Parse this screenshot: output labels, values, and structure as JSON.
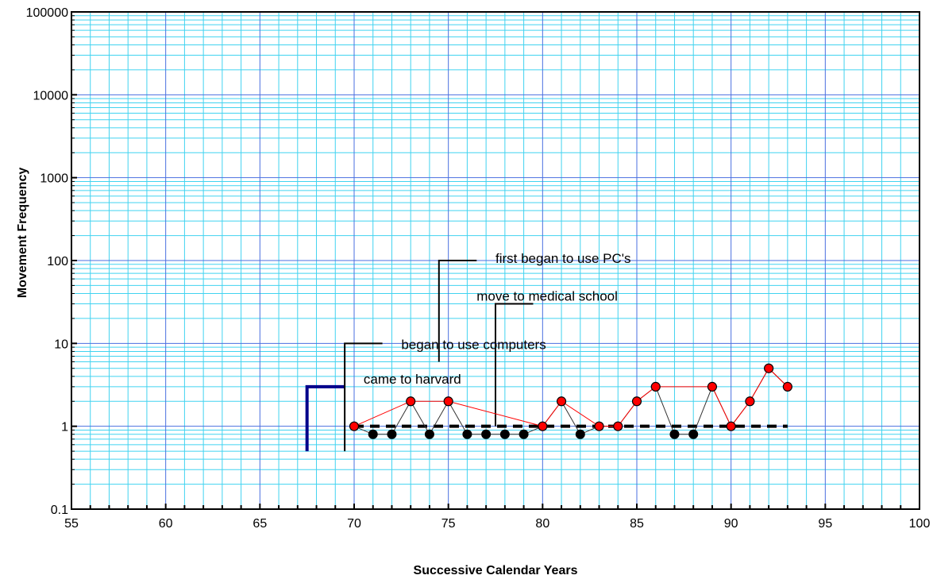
{
  "chart_data": {
    "type": "line",
    "title": "",
    "xlabel": "Successive Calendar Years",
    "ylabel": "Movement  Frequency",
    "xlim": [
      55,
      100
    ],
    "ylim": [
      0.1,
      100000
    ],
    "y_scale": "log",
    "grid": true,
    "colors": {
      "major_grid": "#4a6fe0",
      "minor_grid": "#41d3f0",
      "frequency_line": "#ff0000",
      "frequency_marker": "#ff0000",
      "zero_line": "#000000",
      "zero_marker": "#000000",
      "baseline": "#000000",
      "phase_bracket": "#00008b",
      "axis": "#000000"
    },
    "x_ticks": [
      "55",
      "60",
      "65",
      "70",
      "75",
      "80",
      "85",
      "90",
      "95",
      "100"
    ],
    "y_ticks": [
      "0.1",
      "1",
      "10",
      "100",
      "1000",
      "10000",
      "100000"
    ],
    "series": [
      {
        "x": [
          70,
          73,
          75,
          80,
          81,
          83,
          84,
          85,
          86,
          89,
          90,
          91,
          92,
          93
        ],
        "values": [
          1,
          2,
          2,
          1,
          2,
          1,
          1,
          2,
          3,
          3,
          1,
          2,
          5,
          3
        ]
      },
      {
        "x": [
          71,
          72,
          74,
          76,
          77,
          78,
          79,
          82,
          87,
          88
        ],
        "values": [
          0.8,
          0.8,
          0.8,
          0.8,
          0.8,
          0.8,
          0.8,
          0.8,
          0.8,
          0.8
        ]
      }
    ],
    "connector": {
      "x": [
        70,
        71,
        72,
        73,
        74,
        75,
        76,
        77,
        78,
        79,
        80,
        81,
        82,
        83,
        84,
        85,
        86,
        87,
        88,
        89,
        90,
        91,
        92,
        93
      ],
      "values": [
        1,
        0.8,
        0.8,
        2,
        0.8,
        2,
        0.8,
        0.8,
        0.8,
        0.8,
        1,
        2,
        0.8,
        1,
        1,
        2,
        3,
        0.8,
        0.8,
        3,
        1,
        2,
        5,
        3
      ]
    },
    "baseline": {
      "x": [
        70,
        93
      ],
      "value": 1
    },
    "annotations": [
      {
        "text": "came to harvard",
        "x": 67.5,
        "y_low": 0.5,
        "y_high": 3
      },
      {
        "text": "began to use computers",
        "x": 69.5,
        "y_low": 0.5,
        "y_high": 10
      },
      {
        "text": "first began to use PC's",
        "x": 74.5,
        "y_low": 6,
        "y_high": 100
      },
      {
        "text": "move to medical school",
        "x": 77.5,
        "y_low": 1,
        "y_high": 30
      }
    ]
  }
}
